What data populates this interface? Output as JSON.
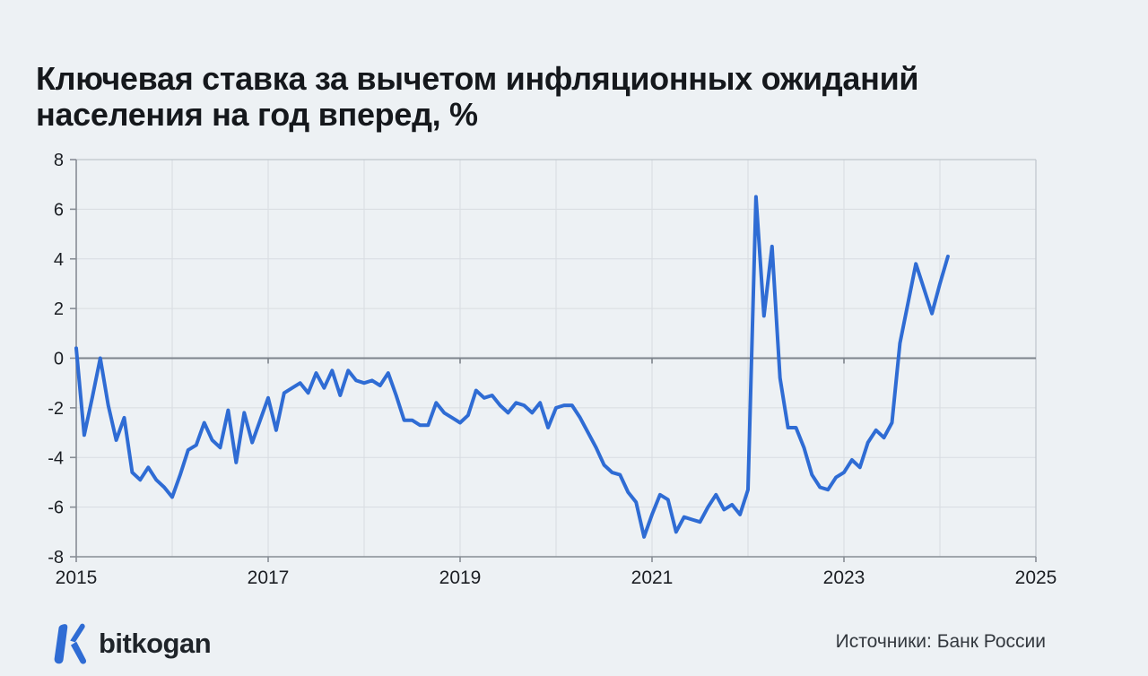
{
  "title": {
    "line1": "Ключевая ставка за вычетом инфляционных ожиданий",
    "line2": "населения на год вперед, %"
  },
  "footer": {
    "brand": "bitkogan",
    "source_label": "Источники: Банк России"
  },
  "colors": {
    "background": "#edf1f4",
    "line": "#2f6cd4",
    "gridline": "#d8dce1",
    "zero_line": "#7d838b",
    "axis": "#878d94",
    "box_border": "#bfc5cb",
    "tick_label": "#1b1e23",
    "title_text": "#15181c",
    "brand_blue": "#2f6cd4"
  },
  "chart_data": {
    "type": "line",
    "title": "Ключевая ставка за вычетом инфляционных ожиданий населения на год вперед, %",
    "source": "Банк России",
    "grid": true,
    "legend": "none",
    "x_axis": {
      "range": [
        2015,
        2025
      ],
      "tick_labels": [
        "2015",
        "2017",
        "2019",
        "2021",
        "2023",
        "2025"
      ],
      "gridlines_every_year": true
    },
    "y_axis": {
      "range": [
        -8,
        8
      ],
      "tick_labels": [
        "8",
        "6",
        "4",
        "2",
        "0",
        "-2",
        "-4",
        "-6",
        "-8"
      ]
    },
    "series": [
      {
        "name": "Ключевая ставка за вычетом инфляционных ожиданий населения, %",
        "start": "2015-01",
        "frequency": "monthly",
        "values": [
          0.4,
          -3.1,
          -1.6,
          0.0,
          -1.9,
          -3.3,
          -2.4,
          -4.6,
          -4.9,
          -4.4,
          -4.9,
          -5.2,
          -5.6,
          -4.7,
          -3.7,
          -3.5,
          -2.6,
          -3.3,
          -3.6,
          -2.1,
          -4.2,
          -2.2,
          -3.4,
          -2.5,
          -1.6,
          -2.9,
          -1.4,
          -1.2,
          -1.0,
          -1.4,
          -0.6,
          -1.2,
          -0.5,
          -1.5,
          -0.5,
          -0.9,
          -1.0,
          -0.9,
          -1.1,
          -0.6,
          -1.5,
          -2.5,
          -2.5,
          -2.7,
          -2.7,
          -1.8,
          -2.2,
          -2.4,
          -2.6,
          -2.3,
          -1.3,
          -1.6,
          -1.5,
          -1.9,
          -2.2,
          -1.8,
          -1.9,
          -2.2,
          -1.8,
          -2.8,
          -2.0,
          -1.9,
          -1.9,
          -2.4,
          -3.0,
          -3.6,
          -4.3,
          -4.6,
          -4.7,
          -5.4,
          -5.8,
          -7.2,
          -6.3,
          -5.5,
          -5.7,
          -7.0,
          -6.4,
          -6.5,
          -6.6,
          -6.0,
          -5.5,
          -6.1,
          -5.9,
          -6.3,
          -5.3,
          6.5,
          1.7,
          4.5,
          -0.8,
          -2.8,
          -2.8,
          -3.6,
          -4.7,
          -5.2,
          -5.3,
          -4.8,
          -4.6,
          -4.1,
          -4.4,
          -3.4,
          -2.9,
          -3.2,
          -2.6,
          0.6,
          2.2,
          3.8,
          2.8,
          1.8,
          3.0,
          4.1
        ]
      }
    ]
  }
}
